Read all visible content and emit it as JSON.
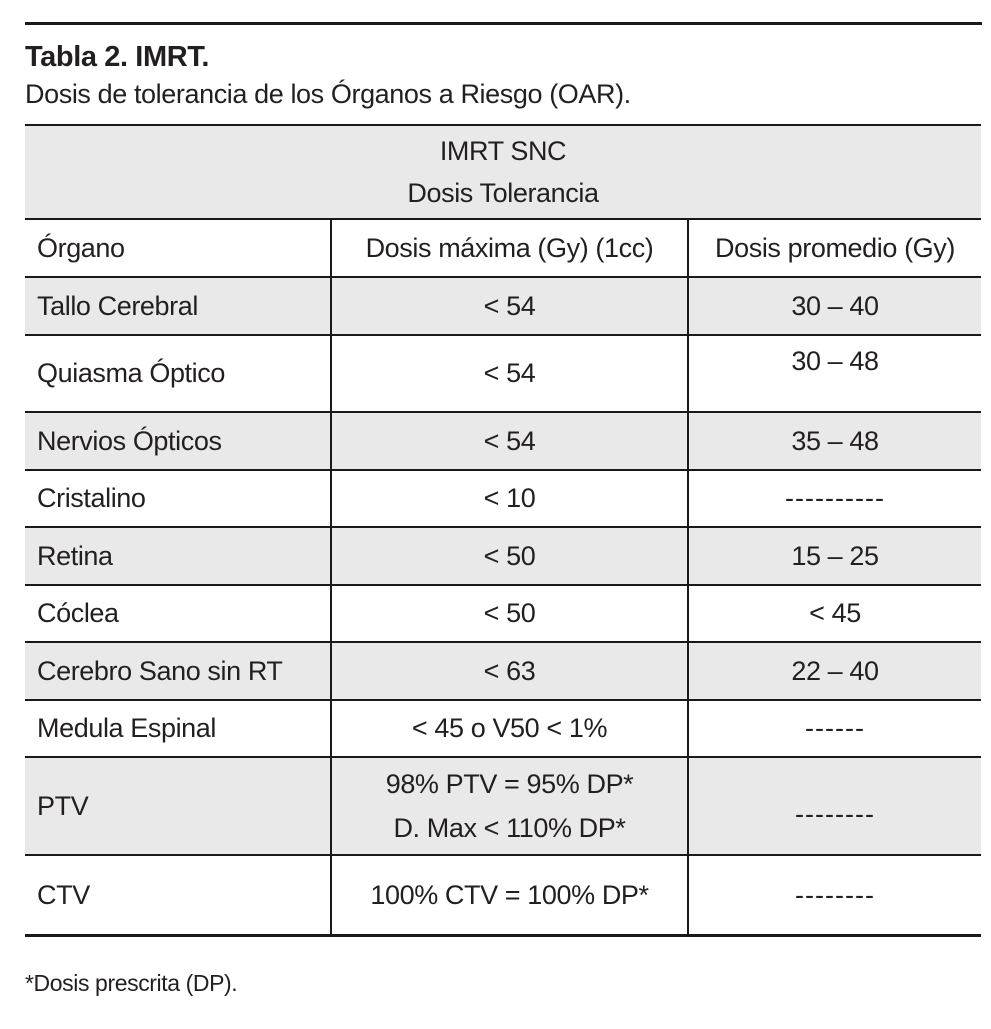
{
  "page": {
    "title": "Tabla 2. IMRT.",
    "subtitle": "Dosis de tolerancia de los Órganos a Riesgo (OAR).",
    "footnote": "*Dosis prescrita (DP)."
  },
  "table": {
    "merged_header": {
      "line1": "IMRT SNC",
      "line2": "Dosis Tolerancia"
    },
    "columns": [
      "Órgano",
      "Dosis máxima (Gy) (1cc)",
      "Dosis promedio (Gy)"
    ],
    "rows": [
      {
        "organ": "Tallo Cerebral",
        "dose_max": "< 54",
        "dose_avg": "30 – 40"
      },
      {
        "organ": "Quiasma Óptico",
        "dose_max": "< 54",
        "dose_avg": "30 – 48"
      },
      {
        "organ": "Nervios Ópticos",
        "dose_max": "< 54",
        "dose_avg": "35 – 48"
      },
      {
        "organ": "Cristalino",
        "dose_max": "< 10",
        "dose_avg": "----------"
      },
      {
        "organ": "Retina",
        "dose_max": "< 50",
        "dose_avg": "15 – 25"
      },
      {
        "organ": "Cóclea",
        "dose_max": "< 50",
        "dose_avg": "< 45"
      },
      {
        "organ": "Cerebro Sano sin RT",
        "dose_max": "< 63",
        "dose_avg": "22 – 40"
      },
      {
        "organ": "Medula Espinal",
        "dose_max": "< 45 o V50 < 1%",
        "dose_avg": "------"
      },
      {
        "organ": "PTV",
        "dose_max": "98% PTV = 95% DP*\nD. Max < 110% DP*",
        "dose_avg": "--------"
      },
      {
        "organ": "CTV",
        "dose_max": "100% CTV = 100% DP*",
        "dose_avg": "--------"
      }
    ]
  },
  "colors": {
    "row_shade": "#e9e9e9",
    "border": "#1a1a1a",
    "text": "#231f20",
    "background": "#ffffff"
  }
}
